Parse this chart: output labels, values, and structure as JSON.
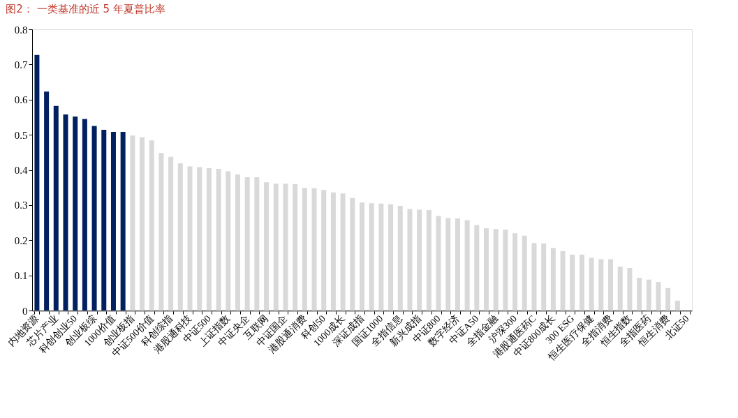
{
  "chart_data": {
    "type": "bar",
    "title": "图2：  一类基准的近 5 年夏普比率",
    "categories": [
      "内地资源",
      null,
      "芯片产业",
      null,
      "科创创业50",
      null,
      "创业板综",
      null,
      "1000价值",
      null,
      "创业板指",
      null,
      "中证500价值",
      null,
      "科创综指",
      null,
      "港股通科技",
      null,
      "中证500",
      null,
      "上证指数",
      null,
      "中证央企",
      null,
      "互联网",
      null,
      "中证国企",
      null,
      "港股通消费",
      null,
      "科创50",
      null,
      "1000成长",
      null,
      "深证成指",
      null,
      "国证1000",
      null,
      "全指信息",
      null,
      "新兴成指",
      null,
      "中证800",
      null,
      "数字经济",
      null,
      "中证A50",
      null,
      "全指金融",
      null,
      "沪深300",
      null,
      "港股通医药C",
      null,
      "中证800成长",
      null,
      "300 ESG",
      null,
      "恒生医疗保健",
      null,
      "全指消费",
      null,
      "恒生指数",
      null,
      "全指医药",
      null,
      "恒生消费",
      null,
      "北证50"
    ],
    "values": [
      0.727,
      0.623,
      0.582,
      0.558,
      0.552,
      0.545,
      0.525,
      0.514,
      0.508,
      0.508,
      0.498,
      0.493,
      0.484,
      0.448,
      0.437,
      0.419,
      0.41,
      0.408,
      0.405,
      0.403,
      0.396,
      0.387,
      0.379,
      0.379,
      0.365,
      0.361,
      0.361,
      0.36,
      0.349,
      0.348,
      0.343,
      0.336,
      0.333,
      0.32,
      0.307,
      0.305,
      0.304,
      0.302,
      0.298,
      0.289,
      0.287,
      0.286,
      0.269,
      0.263,
      0.262,
      0.257,
      0.243,
      0.234,
      0.232,
      0.23,
      0.22,
      0.213,
      0.192,
      0.191,
      0.178,
      0.169,
      0.159,
      0.159,
      0.15,
      0.146,
      0.146,
      0.125,
      0.121,
      0.093,
      0.088,
      0.081,
      0.064,
      0.028,
      null
    ],
    "colors": [
      "#002060",
      "#002060",
      "#002060",
      "#002060",
      "#002060",
      "#002060",
      "#002060",
      "#002060",
      "#002060",
      "#002060",
      "#d9d9d9",
      "#d9d9d9",
      "#d9d9d9",
      "#d9d9d9",
      "#d9d9d9",
      "#d9d9d9",
      "#d9d9d9",
      "#d9d9d9",
      "#d9d9d9",
      "#d9d9d9",
      "#d9d9d9",
      "#d9d9d9",
      "#d9d9d9",
      "#d9d9d9",
      "#d9d9d9",
      "#d9d9d9",
      "#d9d9d9",
      "#d9d9d9",
      "#d9d9d9",
      "#d9d9d9",
      "#d9d9d9",
      "#d9d9d9",
      "#d9d9d9",
      "#d9d9d9",
      "#d9d9d9",
      "#d9d9d9",
      "#d9d9d9",
      "#d9d9d9",
      "#d9d9d9",
      "#d9d9d9",
      "#d9d9d9",
      "#d9d9d9",
      "#d9d9d9",
      "#d9d9d9",
      "#d9d9d9",
      "#d9d9d9",
      "#d9d9d9",
      "#d9d9d9",
      "#d9d9d9",
      "#d9d9d9",
      "#d9d9d9",
      "#d9d9d9",
      "#d9d9d9",
      "#d9d9d9",
      "#d9d9d9",
      "#d9d9d9",
      "#d9d9d9",
      "#d9d9d9",
      "#d9d9d9",
      "#d9d9d9",
      "#d9d9d9",
      "#d9d9d9",
      "#d9d9d9",
      "#d9d9d9",
      "#d9d9d9",
      "#d9d9d9",
      "#d9d9d9",
      "#d9d9d9",
      "#d9d9d9"
    ],
    "ylim": [
      0,
      0.8
    ],
    "yticks": [
      0,
      0.1,
      0.2,
      0.3,
      0.4,
      0.5,
      0.6,
      0.7,
      0.8
    ],
    "grid": false
  }
}
